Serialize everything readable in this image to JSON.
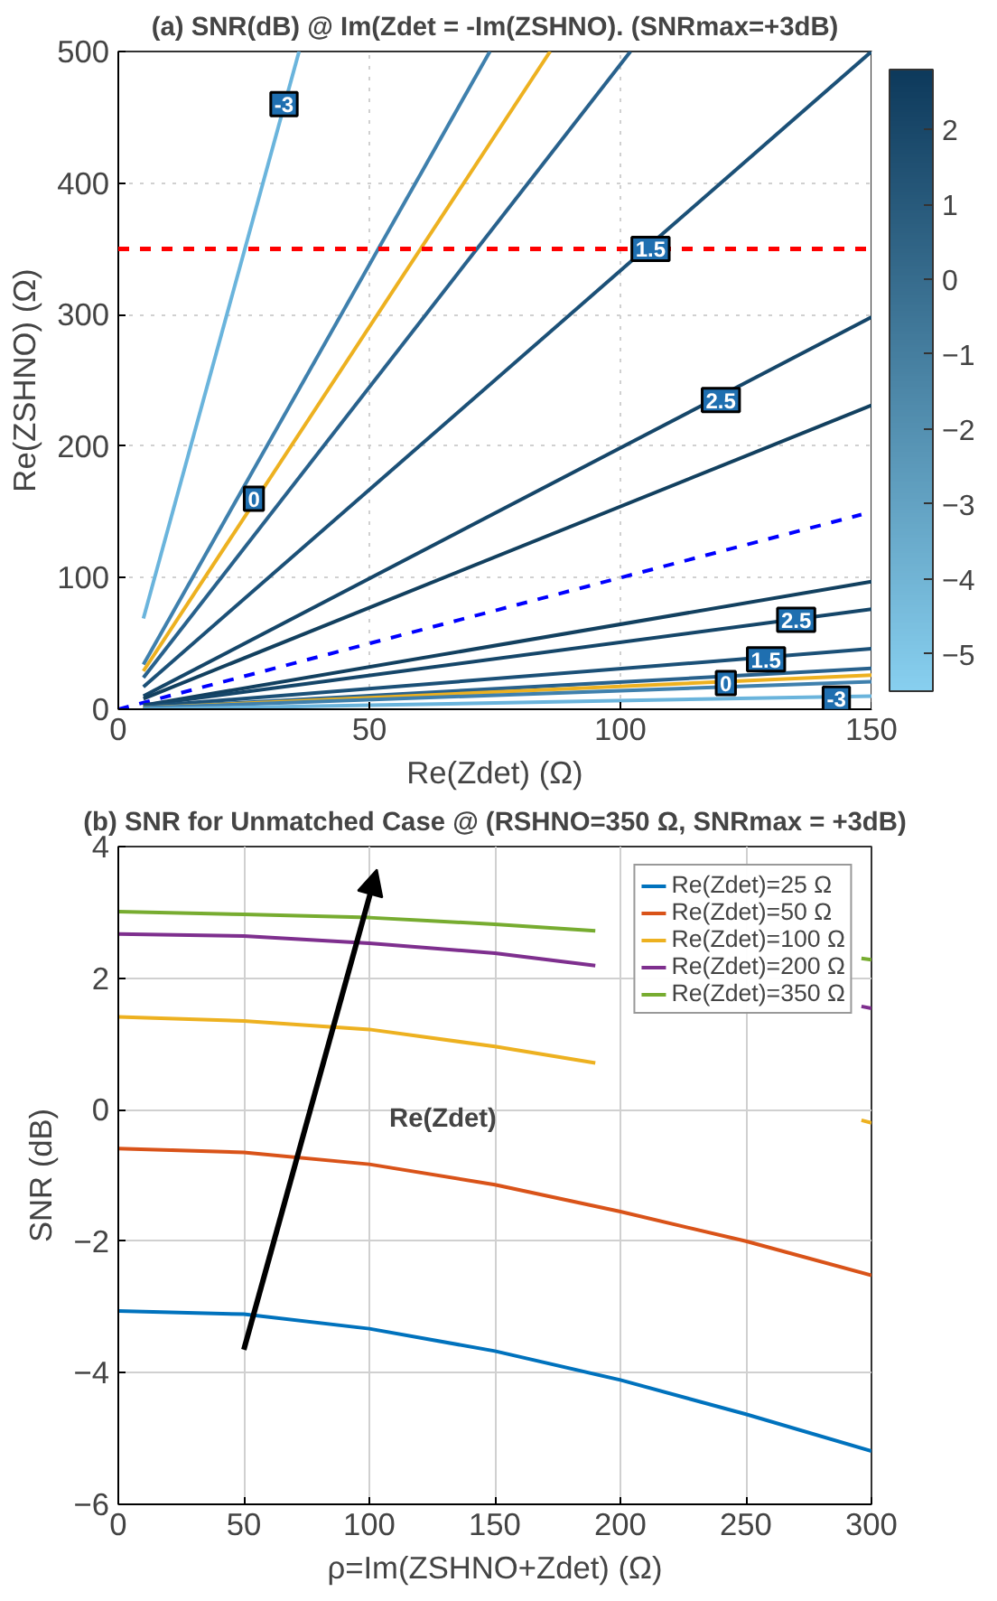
{
  "chart_data": [
    {
      "type": "line",
      "title": "(a) SNR(dB) @ Im(Zdet = -Im(ZSHNO). (SNRmax=+3dB)",
      "xlabel": "Re(Zdet) (Ω)",
      "ylabel": "Re(ZSHNO) (Ω)",
      "xlim": [
        0,
        150
      ],
      "ylim": [
        0,
        500
      ],
      "xticks": [
        0,
        50,
        100,
        150
      ],
      "yticks": [
        0,
        100,
        200,
        300,
        400,
        500
      ],
      "grid": true,
      "legend": false,
      "clim": [
        -5.5,
        2.8
      ],
      "cticks": [
        -5,
        -4,
        -3,
        -2,
        -1,
        0,
        1,
        2
      ],
      "series": [
        {
          "color": "#6ab4dc",
          "x": [
            5,
            36
          ],
          "values": [
            69,
            500
          ]
        },
        {
          "color": "#3f80ad",
          "x": [
            5,
            74
          ],
          "values": [
            34,
            500
          ]
        },
        {
          "color": "#edb120",
          "x": [
            5,
            86
          ],
          "values": [
            29,
            500
          ]
        },
        {
          "color": "#28618c",
          "x": [
            5,
            102
          ],
          "values": [
            24,
            500
          ]
        },
        {
          "color": "#1b5077",
          "x": [
            5,
            150
          ],
          "values": [
            17,
            500
          ]
        },
        {
          "color": "#154669",
          "x": [
            5,
            150
          ],
          "values": [
            10,
            298
          ]
        },
        {
          "color": "#12405f",
          "x": [
            5,
            150
          ],
          "values": [
            8,
            231
          ]
        },
        {
          "color": "#0000ff",
          "x": [
            0,
            148
          ],
          "values": [
            0,
            148
          ],
          "line_style": "dashed"
        },
        {
          "color": "#12405f",
          "x": [
            5,
            150
          ],
          "values": [
            3,
            97
          ]
        },
        {
          "color": "#154669",
          "x": [
            5,
            150
          ],
          "values": [
            3,
            76
          ]
        },
        {
          "color": "#1b5077",
          "x": [
            5,
            150
          ],
          "values": [
            2,
            46
          ]
        },
        {
          "color": "#28618c",
          "x": [
            5,
            150
          ],
          "values": [
            1,
            31
          ]
        },
        {
          "color": "#edb120",
          "x": [
            5,
            150
          ],
          "values": [
            1,
            26
          ]
        },
        {
          "color": "#3f80ad",
          "x": [
            5,
            150
          ],
          "values": [
            1,
            21
          ]
        },
        {
          "color": "#6ab4dc",
          "x": [
            5,
            150
          ],
          "values": [
            0,
            10
          ]
        }
      ],
      "ref_lines": [
        {
          "axis": "y",
          "value": 350,
          "color": "#ff0000",
          "line_style": "dashed"
        }
      ],
      "annotations": [
        {
          "text": "-3",
          "x": 33,
          "y": 460
        },
        {
          "text": "0",
          "x": 27,
          "y": 160
        },
        {
          "text": "1.5",
          "x": 106,
          "y": 350
        },
        {
          "text": "2.5",
          "x": 120,
          "y": 235
        },
        {
          "text": "2.5",
          "x": 135,
          "y": 68
        },
        {
          "text": "1.5",
          "x": 129,
          "y": 38
        },
        {
          "text": "0",
          "x": 121,
          "y": 20
        },
        {
          "text": "-3",
          "x": 143,
          "y": 8
        }
      ]
    },
    {
      "type": "line",
      "title": "(b) SNR for Unmatched Case @ (RSHNO=350 Ω, SNRmax = +3dB)",
      "xlabel": "ρ=Im(ZSHNO+Zdet) (Ω)",
      "ylabel": "SNR (dB)",
      "x": [
        0,
        50,
        100,
        150,
        200,
        250,
        300
      ],
      "xlim": [
        0,
        300
      ],
      "ylim": [
        -6,
        4
      ],
      "xticks": [
        0,
        50,
        100,
        150,
        200,
        250,
        300
      ],
      "yticks": [
        -6,
        -4,
        -2,
        0,
        2,
        4
      ],
      "grid": true,
      "legend": "top right",
      "series": [
        {
          "name": "Re(Zdet)=25 Ω",
          "color": "#0072bd",
          "values": [
            -3.06,
            -3.11,
            -3.33,
            -3.67,
            -4.11,
            -4.63,
            -5.19
          ]
        },
        {
          "name": "Re(Zdet)=50 Ω",
          "color": "#d95319",
          "values": [
            -0.59,
            -0.65,
            -0.83,
            -1.14,
            -1.55,
            -2.0,
            -2.52
          ]
        },
        {
          "name": "Re(Zdet)=100 Ω",
          "color": "#edb120",
          "x": [
            0,
            50,
            100,
            150,
            190,
            250,
            296,
            300
          ],
          "values": [
            1.41,
            1.35,
            1.22,
            0.96,
            0.71,
            null,
            -0.16,
            -0.2
          ]
        },
        {
          "name": "Re(Zdet)=200 Ω",
          "color": "#7e2f8e",
          "x": [
            0,
            50,
            100,
            150,
            190,
            250,
            296,
            300
          ],
          "values": [
            2.67,
            2.64,
            2.53,
            2.38,
            2.19,
            null,
            1.57,
            1.54
          ]
        },
        {
          "name": "Re(Zdet)=350 Ω",
          "color": "#77ac30",
          "x": [
            0,
            50,
            100,
            150,
            190,
            250,
            296,
            300
          ],
          "values": [
            3.01,
            2.97,
            2.92,
            2.82,
            2.72,
            null,
            2.3,
            2.28
          ]
        }
      ],
      "annotations": [
        "Re(Zdet)"
      ]
    }
  ]
}
